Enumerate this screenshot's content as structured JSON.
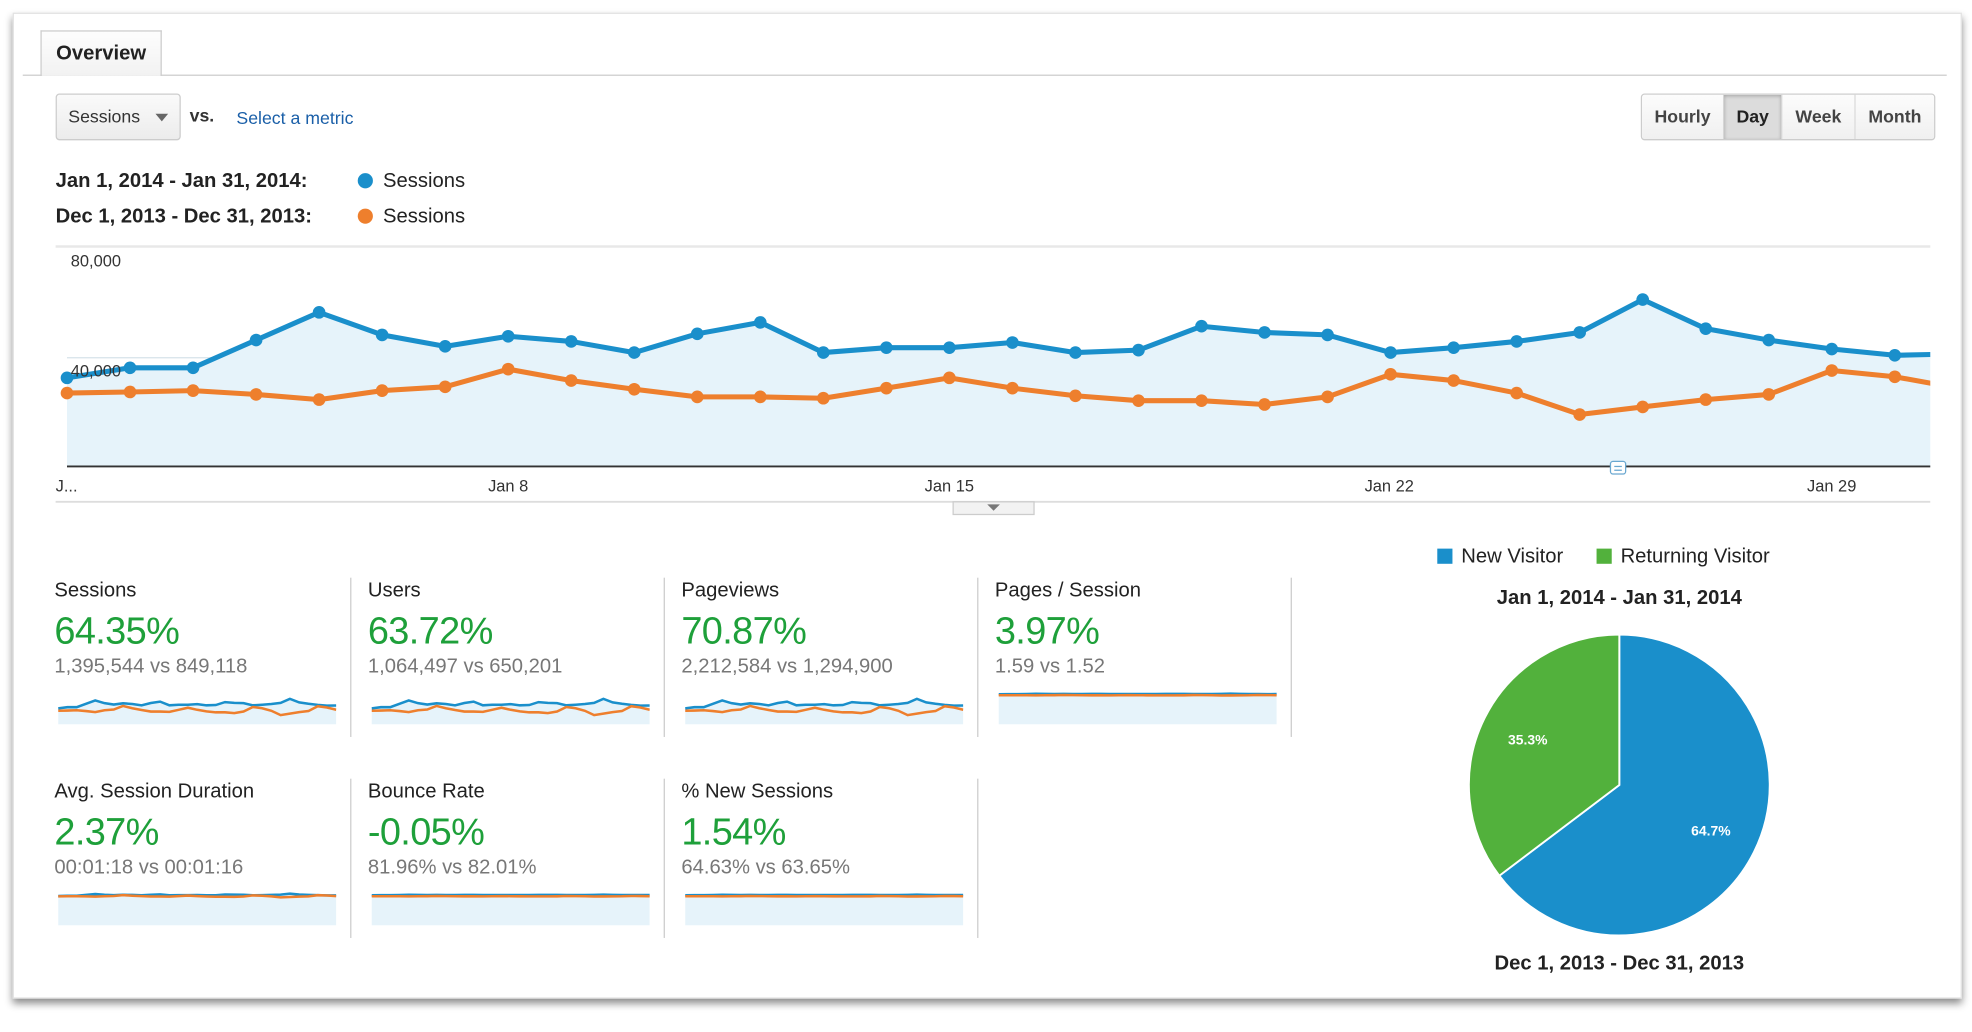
{
  "tabs": [
    {
      "label": "Overview",
      "active": true
    }
  ],
  "toolbar": {
    "metric_select": "Sessions",
    "vs_label": "vs.",
    "select_metric_link": "Select a metric",
    "granularity": [
      {
        "label": "Hourly",
        "active": false
      },
      {
        "label": "Day",
        "active": true
      },
      {
        "label": "Week",
        "active": false
      },
      {
        "label": "Month",
        "active": false
      }
    ]
  },
  "legend": [
    {
      "range": "Jan 1, 2014 - Jan 31, 2014:",
      "series": "Sessions",
      "color": "#1a8fcb"
    },
    {
      "range": "Dec 1, 2013 - Dec 31, 2013:",
      "series": "Sessions",
      "color": "#ee7f2d"
    }
  ],
  "chart_data": [
    {
      "type": "line",
      "x": [
        "Jan 1",
        "Jan 2",
        "Jan 3",
        "Jan 4",
        "Jan 5",
        "Jan 6",
        "Jan 7",
        "Jan 8",
        "Jan 9",
        "Jan 10",
        "Jan 11",
        "Jan 12",
        "Jan 13",
        "Jan 14",
        "Jan 15",
        "Jan 16",
        "Jan 17",
        "Jan 18",
        "Jan 19",
        "Jan 20",
        "Jan 21",
        "Jan 22",
        "Jan 23",
        "Jan 24",
        "Jan 25",
        "Jan 26",
        "Jan 27",
        "Jan 28",
        "Jan 29",
        "Jan 30",
        "Jan 31"
      ],
      "x_tick_labels": [
        "J...",
        "Jan 8",
        "Jan 15",
        "Jan 22",
        "Jan 29"
      ],
      "y_tick_labels": [
        "80,000",
        "40,000"
      ],
      "ylim": [
        0,
        80000
      ],
      "grid": true,
      "series": [
        {
          "name": "Sessions",
          "color": "#1a8fcb",
          "area_fill": true,
          "values": [
            32600,
            36300,
            36300,
            46500,
            56700,
            48400,
            44200,
            47900,
            46000,
            41900,
            48800,
            53000,
            41900,
            43700,
            43700,
            45600,
            41900,
            42800,
            51600,
            49300,
            48400,
            41900,
            43700,
            46000,
            49300,
            61400,
            50700,
            46500,
            43200,
            40900,
            41400
          ]
        },
        {
          "name": "Sessions",
          "color": "#ee7f2d",
          "values": [
            27000,
            27400,
            27900,
            26500,
            24600,
            27900,
            29300,
            35800,
            31600,
            28400,
            25600,
            25600,
            25100,
            28800,
            32600,
            28800,
            26000,
            24200,
            24200,
            22800,
            25600,
            33900,
            31600,
            27000,
            19100,
            21900,
            24600,
            26500,
            35300,
            33000,
            28800
          ]
        }
      ]
    },
    {
      "type": "pie",
      "legend": [
        "New Visitor",
        "Returning Visitor"
      ],
      "legend_placement": "top",
      "title": "Jan 1, 2014 - Jan 31, 2014",
      "subtitle": "Dec 1, 2013 - Dec 31, 2013",
      "slices": [
        {
          "label": "New Visitor",
          "value": 64.7,
          "display": "64.7%",
          "color": "#1a8fcb"
        },
        {
          "label": "Returning Visitor",
          "value": 35.3,
          "display": "35.3%",
          "color": "#52b13c"
        }
      ]
    }
  ],
  "scorecards": [
    {
      "title": "Sessions",
      "change": "64.35%",
      "compare": "1,395,544 vs 849,118",
      "spark_variation": "high"
    },
    {
      "title": "Users",
      "change": "63.72%",
      "compare": "1,064,497 vs 650,201",
      "spark_variation": "high"
    },
    {
      "title": "Pageviews",
      "change": "70.87%",
      "compare": "2,212,584 vs 1,294,900",
      "spark_variation": "high"
    },
    {
      "title": "Pages / Session",
      "change": "3.97%",
      "compare": "1.59 vs 1.52",
      "spark_variation": "flat"
    },
    {
      "title": "Avg. Session Duration",
      "change": "2.37%",
      "compare": "00:01:18 vs 00:01:16",
      "spark_variation": "low"
    },
    {
      "title": "Bounce Rate",
      "change": "-0.05%",
      "compare": "81.96% vs 82.01%",
      "spark_variation": "flat"
    },
    {
      "title": "% New Sessions",
      "change": "1.54%",
      "compare": "64.63% vs 63.65%",
      "spark_variation": "flat"
    }
  ],
  "colors": {
    "positive": "#1ea03a",
    "link": "#1a5fa8",
    "area": "#e6f3fa"
  }
}
